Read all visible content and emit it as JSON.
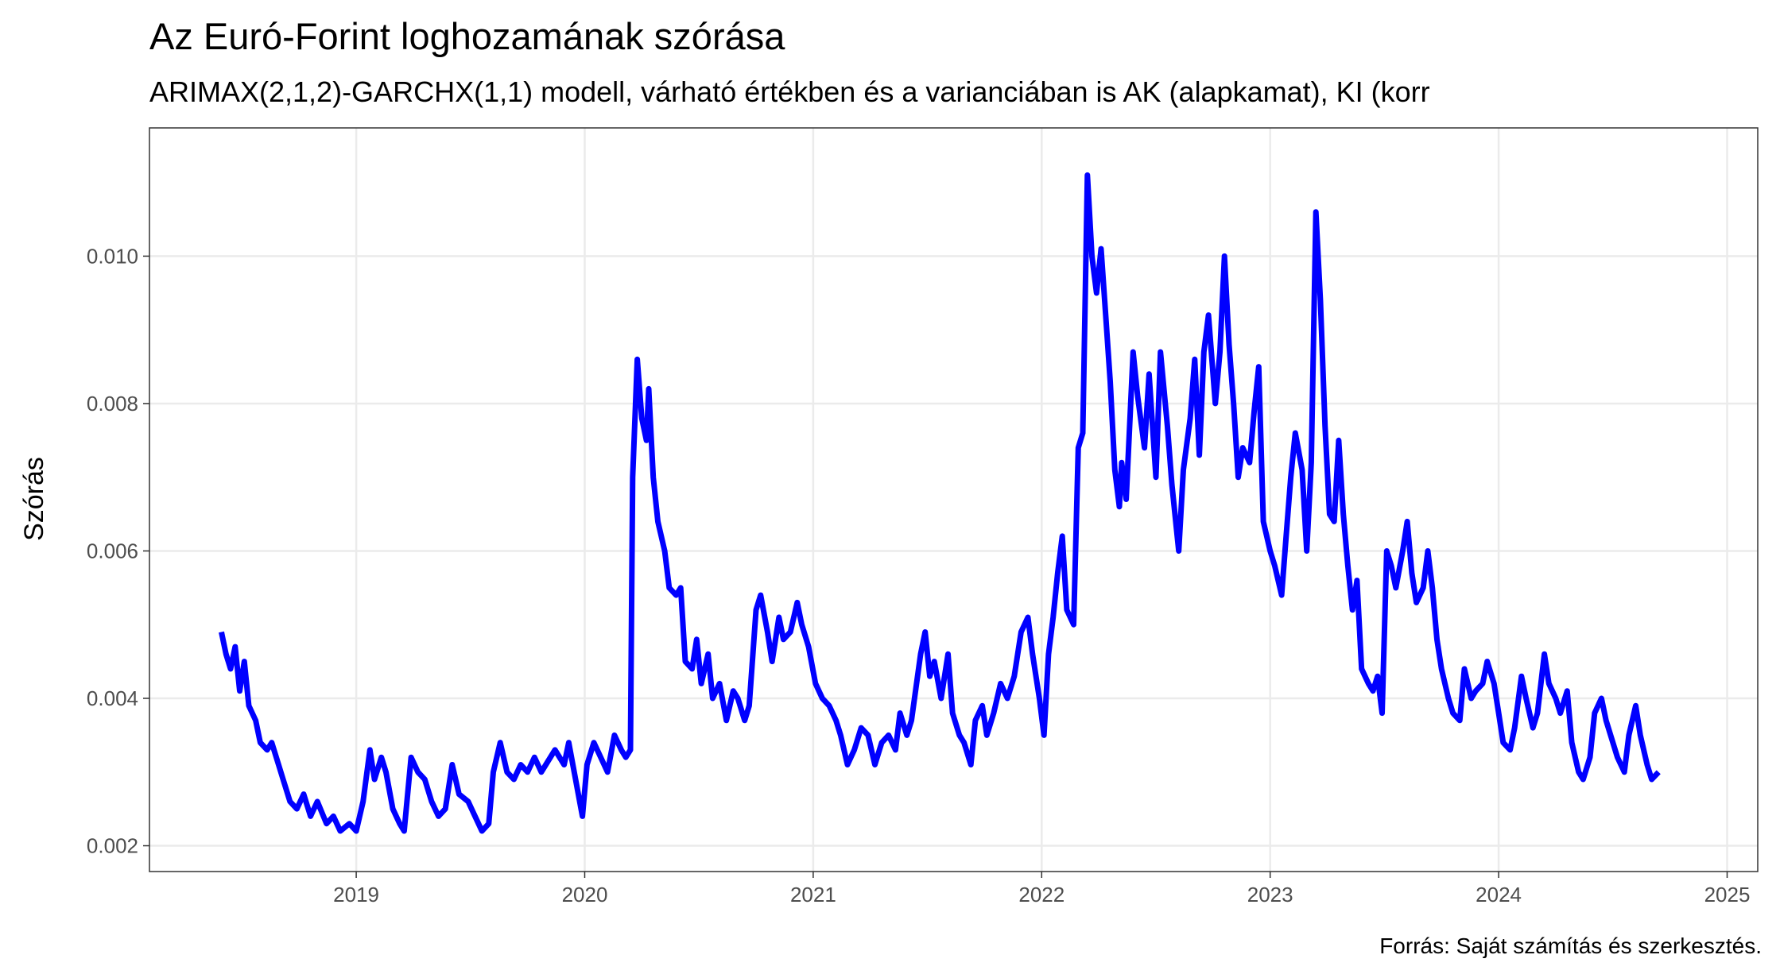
{
  "chart_data": {
    "type": "line",
    "title": "Az Euró-Forint loghozamának szórása",
    "subtitle": "ARIMAX(2,1,2)-GARCHX(1,1) modell, várható értékben és a varianciában is AK (alapkamat), KI (korr",
    "y_label": "Szórás",
    "caption": "Forrás: Saját számítás és szerkesztés.",
    "color": "#0000ff",
    "grid": true,
    "xlim": [
      2018.095,
      2025.134
    ],
    "xticks": [
      2019,
      2020,
      2021,
      2022,
      2023,
      2024,
      2025
    ],
    "ylim": [
      0.00165,
      0.01174
    ],
    "yticks": [
      {
        "value": 0.002,
        "label": "0.002"
      },
      {
        "value": 0.004,
        "label": "0.004"
      },
      {
        "value": 0.006,
        "label": "0.006"
      },
      {
        "value": 0.008,
        "label": "0.008"
      },
      {
        "value": 0.01,
        "label": "0.010"
      }
    ],
    "x": [
      2018.41,
      2018.43,
      2018.45,
      2018.47,
      2018.49,
      2018.51,
      2018.53,
      2018.56,
      2018.58,
      2018.61,
      2018.63,
      2018.66,
      2018.68,
      2018.71,
      2018.74,
      2018.77,
      2018.8,
      2018.83,
      2018.87,
      2018.9,
      2018.93,
      2018.97,
      2019.0,
      2019.03,
      2019.06,
      2019.08,
      2019.11,
      2019.13,
      2019.16,
      2019.19,
      2019.21,
      2019.24,
      2019.27,
      2019.3,
      2019.33,
      2019.36,
      2019.39,
      2019.42,
      2019.45,
      2019.49,
      2019.52,
      2019.55,
      2019.58,
      2019.6,
      2019.63,
      2019.66,
      2019.69,
      2019.72,
      2019.75,
      2019.78,
      2019.81,
      2019.83,
      2019.87,
      2019.91,
      2019.93,
      2019.96,
      2019.99,
      2020.01,
      2020.04,
      2020.07,
      2020.1,
      2020.13,
      2020.16,
      2020.18,
      2020.2,
      2020.21,
      2020.23,
      2020.25,
      2020.27,
      2020.28,
      2020.3,
      2020.32,
      2020.35,
      2020.37,
      2020.4,
      2020.42,
      2020.44,
      2020.47,
      2020.49,
      2020.51,
      2020.54,
      2020.56,
      2020.59,
      2020.62,
      2020.65,
      2020.67,
      2020.7,
      2020.72,
      2020.75,
      2020.77,
      2020.8,
      2020.82,
      2020.85,
      2020.87,
      2020.9,
      2020.93,
      2020.95,
      2020.98,
      2021.01,
      2021.04,
      2021.07,
      2021.1,
      2021.12,
      2021.15,
      2021.18,
      2021.21,
      2021.24,
      2021.27,
      2021.3,
      2021.33,
      2021.36,
      2021.38,
      2021.41,
      2021.43,
      2021.47,
      2021.49,
      2021.51,
      2021.53,
      2021.56,
      2021.59,
      2021.61,
      2021.64,
      2021.66,
      2021.69,
      2021.71,
      2021.74,
      2021.76,
      2021.79,
      2021.82,
      2021.85,
      2021.88,
      2021.91,
      2021.94,
      2021.96,
      2021.99,
      2022.01,
      2022.03,
      2022.05,
      2022.07,
      2022.09,
      2022.11,
      2022.14,
      2022.16,
      2022.18,
      2022.2,
      2022.22,
      2022.24,
      2022.26,
      2022.28,
      2022.3,
      2022.32,
      2022.34,
      2022.35,
      2022.37,
      2022.4,
      2022.42,
      2022.45,
      2022.47,
      2022.5,
      2022.52,
      2022.55,
      2022.57,
      2022.6,
      2022.62,
      2022.65,
      2022.67,
      2022.69,
      2022.71,
      2022.73,
      2022.76,
      2022.78,
      2022.8,
      2022.82,
      2022.84,
      2022.86,
      2022.88,
      2022.91,
      2022.93,
      2022.95,
      2022.97,
      2023.0,
      2023.02,
      2023.05,
      2023.07,
      2023.09,
      2023.11,
      2023.14,
      2023.16,
      2023.18,
      2023.2,
      2023.22,
      2023.24,
      2023.26,
      2023.28,
      2023.3,
      2023.32,
      2023.34,
      2023.36,
      2023.38,
      2023.4,
      2023.43,
      2023.45,
      2023.47,
      2023.49,
      2023.51,
      2023.53,
      2023.55,
      2023.58,
      2023.6,
      2023.62,
      2023.64,
      2023.67,
      2023.69,
      2023.71,
      2023.73,
      2023.75,
      2023.78,
      2023.8,
      2023.83,
      2023.85,
      2023.88,
      2023.9,
      2023.93,
      2023.95,
      2023.98,
      2024.0,
      2024.02,
      2024.05,
      2024.07,
      2024.1,
      2024.12,
      2024.15,
      2024.17,
      2024.2,
      2024.22,
      2024.25,
      2024.27,
      2024.3,
      2024.32,
      2024.35,
      2024.37,
      2024.4,
      2024.42,
      2024.45,
      2024.47,
      2024.5,
      2024.52,
      2024.55,
      2024.57,
      2024.6,
      2024.62,
      2024.65,
      2024.67,
      2024.7
    ],
    "values": [
      0.0049,
      0.0046,
      0.0044,
      0.0047,
      0.0041,
      0.0045,
      0.0039,
      0.0037,
      0.0034,
      0.0033,
      0.0034,
      0.0031,
      0.0029,
      0.0026,
      0.0025,
      0.0027,
      0.0024,
      0.0026,
      0.0023,
      0.0024,
      0.0022,
      0.0023,
      0.0022,
      0.0026,
      0.0033,
      0.0029,
      0.0032,
      0.003,
      0.0025,
      0.0023,
      0.0022,
      0.0032,
      0.003,
      0.0029,
      0.0026,
      0.0024,
      0.0025,
      0.0031,
      0.0027,
      0.0026,
      0.0024,
      0.0022,
      0.0023,
      0.003,
      0.0034,
      0.003,
      0.0029,
      0.0031,
      0.003,
      0.0032,
      0.003,
      0.0031,
      0.0033,
      0.0031,
      0.0034,
      0.0029,
      0.0024,
      0.0031,
      0.0034,
      0.0032,
      0.003,
      0.0035,
      0.0033,
      0.0032,
      0.0033,
      0.007,
      0.0086,
      0.0078,
      0.0075,
      0.0082,
      0.007,
      0.0064,
      0.006,
      0.0055,
      0.0054,
      0.0055,
      0.0045,
      0.0044,
      0.0048,
      0.0042,
      0.0046,
      0.004,
      0.0042,
      0.0037,
      0.0041,
      0.004,
      0.0037,
      0.0039,
      0.0052,
      0.0054,
      0.0049,
      0.0045,
      0.0051,
      0.0048,
      0.0049,
      0.0053,
      0.005,
      0.0047,
      0.0042,
      0.004,
      0.0039,
      0.0037,
      0.0035,
      0.0031,
      0.0033,
      0.0036,
      0.0035,
      0.0031,
      0.0034,
      0.0035,
      0.0033,
      0.0038,
      0.0035,
      0.0037,
      0.0046,
      0.0049,
      0.0043,
      0.0045,
      0.004,
      0.0046,
      0.0038,
      0.0035,
      0.0034,
      0.0031,
      0.0037,
      0.0039,
      0.0035,
      0.0038,
      0.0042,
      0.004,
      0.0043,
      0.0049,
      0.0051,
      0.0046,
      0.004,
      0.0035,
      0.0046,
      0.0051,
      0.0057,
      0.0062,
      0.0052,
      0.005,
      0.0074,
      0.0076,
      0.0111,
      0.01,
      0.0095,
      0.0101,
      0.0092,
      0.0083,
      0.0071,
      0.0066,
      0.0072,
      0.0067,
      0.0087,
      0.0081,
      0.0074,
      0.0084,
      0.007,
      0.0087,
      0.0077,
      0.0069,
      0.006,
      0.0071,
      0.0078,
      0.0086,
      0.0073,
      0.0087,
      0.0092,
      0.008,
      0.0087,
      0.01,
      0.0088,
      0.008,
      0.007,
      0.0074,
      0.0072,
      0.0079,
      0.0085,
      0.0064,
      0.006,
      0.0058,
      0.0054,
      0.0062,
      0.007,
      0.0076,
      0.0071,
      0.006,
      0.0072,
      0.0106,
      0.0094,
      0.0077,
      0.0065,
      0.0064,
      0.0075,
      0.0065,
      0.0058,
      0.0052,
      0.0056,
      0.0044,
      0.0042,
      0.0041,
      0.0043,
      0.0038,
      0.006,
      0.0058,
      0.0055,
      0.006,
      0.0064,
      0.0057,
      0.0053,
      0.0055,
      0.006,
      0.0055,
      0.0048,
      0.0044,
      0.004,
      0.0038,
      0.0037,
      0.0044,
      0.004,
      0.0041,
      0.0042,
      0.0045,
      0.0042,
      0.0038,
      0.0034,
      0.0033,
      0.0036,
      0.0043,
      0.004,
      0.0036,
      0.0038,
      0.0046,
      0.0042,
      0.004,
      0.0038,
      0.0041,
      0.0034,
      0.003,
      0.0029,
      0.0032,
      0.0038,
      0.004,
      0.0037,
      0.0034,
      0.0032,
      0.003,
      0.0035,
      0.0039,
      0.0035,
      0.0031,
      0.0029,
      0.003
    ]
  }
}
